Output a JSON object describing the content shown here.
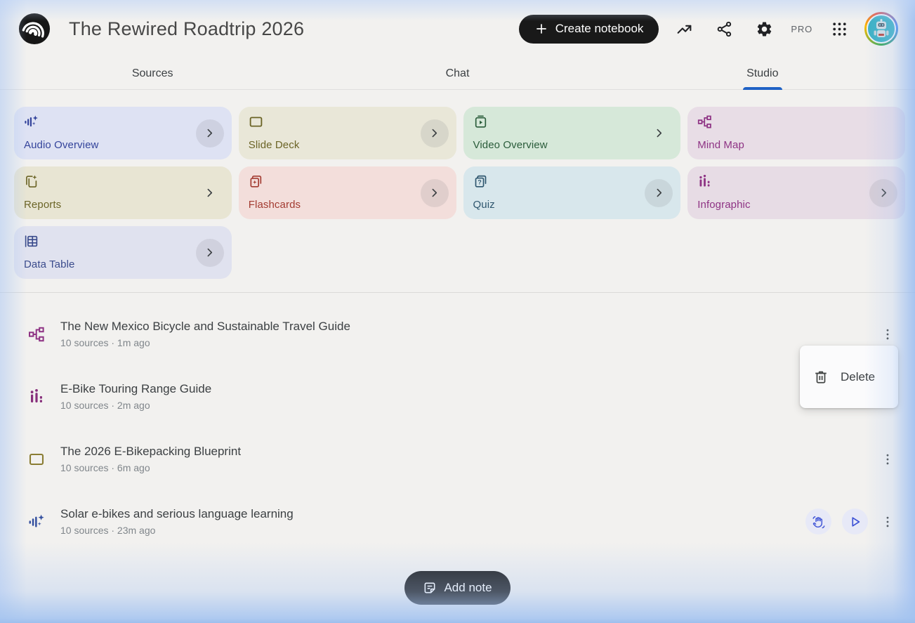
{
  "header": {
    "title": "The Rewired Roadtrip 2026",
    "create_notebook_label": "Create notebook",
    "pro_label": "PRO"
  },
  "tabs": [
    {
      "label": "Sources",
      "active": false
    },
    {
      "label": "Chat",
      "active": false
    },
    {
      "label": "Studio",
      "active": true
    }
  ],
  "studio_cards": [
    {
      "label": "Audio Overview",
      "icon": "audio-overview-icon",
      "bg": "#dee2f3",
      "fg": "#33439b",
      "chevron": "circle"
    },
    {
      "label": "Slide Deck",
      "icon": "slide-deck-icon",
      "bg": "#e9e7d8",
      "fg": "#6b6426",
      "chevron": "circle"
    },
    {
      "label": "Video Overview",
      "icon": "video-overview-icon",
      "bg": "#d6e8d9",
      "fg": "#2a5c3a",
      "chevron": "plain"
    },
    {
      "label": "Mind Map",
      "icon": "mind-map-icon",
      "bg": "#e8dde6",
      "fg": "#8e3384",
      "chevron": "none"
    },
    {
      "label": "Reports",
      "icon": "reports-icon",
      "bg": "#e8e5d3",
      "fg": "#6b6426",
      "chevron": "plain"
    },
    {
      "label": "Flashcards",
      "icon": "flashcards-icon",
      "bg": "#f3dedb",
      "fg": "#a33b31",
      "chevron": "circle"
    },
    {
      "label": "Quiz",
      "icon": "quiz-icon",
      "bg": "#d8e7ec",
      "fg": "#2e566e",
      "chevron": "circle"
    },
    {
      "label": "Infographic",
      "icon": "infographic-icon",
      "bg": "#e7dce5",
      "fg": "#8e3384",
      "chevron": "circle"
    },
    {
      "label": "Data Table",
      "icon": "data-table-icon",
      "bg": "#e0e2ef",
      "fg": "#3a4b8c",
      "chevron": "circle"
    }
  ],
  "artifacts": [
    {
      "icon": "mind-map-icon",
      "icon_color": "#8e3384",
      "title": "The New Mexico Bicycle and Sustainable Travel Guide",
      "meta": "10 sources · 1m ago",
      "actions": [
        "more"
      ]
    },
    {
      "icon": "infographic-icon",
      "icon_color": "#872f7b",
      "title": "E-Bike Touring Range Guide",
      "meta": "10 sources · 2m ago",
      "actions": [
        "more"
      ]
    },
    {
      "icon": "slide-deck-icon",
      "icon_color": "#8a7d33",
      "title": "The 2026 E-Bikepacking Blueprint",
      "meta": "10 sources · 6m ago",
      "actions": [
        "more"
      ]
    },
    {
      "icon": "audio-overview-icon",
      "icon_color": "#34509f",
      "title": "Solar e-bikes and serious language learning",
      "meta": "10 sources · 23m ago",
      "actions": [
        "interactive",
        "play",
        "more"
      ]
    }
  ],
  "context_menu": {
    "delete_label": "Delete"
  },
  "footer": {
    "add_note_label": "Add note"
  },
  "colors": {
    "accent_blue": "#1f62c5",
    "button_black": "#191919",
    "edge_glow_blue": "#9dbfed"
  }
}
